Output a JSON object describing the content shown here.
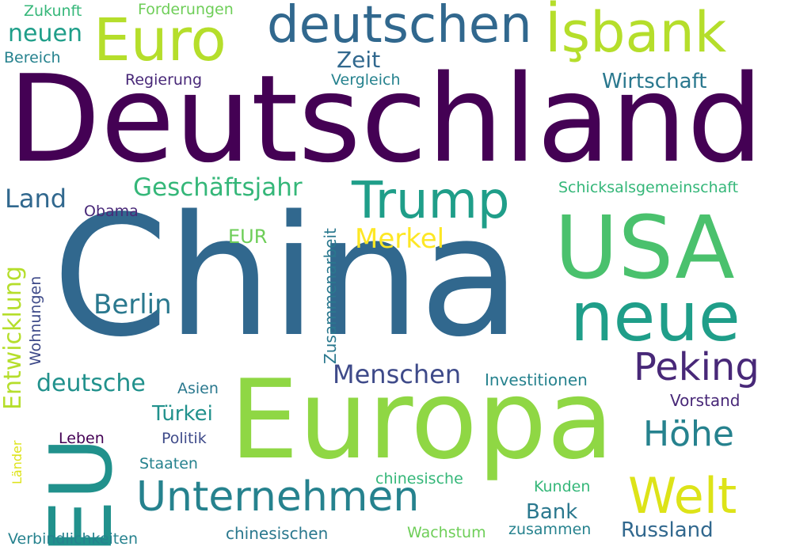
{
  "colors": {
    "c0": "#440154",
    "c1": "#482878",
    "c2": "#3e4a89",
    "c3": "#31688e",
    "c4": "#26828e",
    "c5": "#1f9e89",
    "c6": "#35b779",
    "c7": "#6ece58",
    "c8": "#b5de2b",
    "c9": "#fde725",
    "c10": "#4ac16d",
    "c11": "#8fd744",
    "c12": "#2a788e",
    "c13": "#21918c"
  },
  "words": [
    {
      "id": "deutschland",
      "text": "Deutschland",
      "color": "#440154"
    },
    {
      "id": "china",
      "text": "China",
      "color": "#31688e"
    },
    {
      "id": "europa",
      "text": "Europa",
      "color": "#8fd744"
    },
    {
      "id": "usa",
      "text": "USA",
      "color": "#4ac16d"
    },
    {
      "id": "eu",
      "text": "EU",
      "color": "#21918c"
    },
    {
      "id": "neue",
      "text": "neue",
      "color": "#1f9e89"
    },
    {
      "id": "deutschen",
      "text": "deutschen",
      "color": "#31688e"
    },
    {
      "id": "isbank",
      "text": "İşbank",
      "color": "#b5de2b"
    },
    {
      "id": "euro",
      "text": "Euro",
      "color": "#b5de2b"
    },
    {
      "id": "trump",
      "text": "Trump",
      "color": "#1f9e89"
    },
    {
      "id": "unternehmen",
      "text": "Unternehmen",
      "color": "#26828e"
    },
    {
      "id": "welt",
      "text": "Welt",
      "color": "#dde318"
    },
    {
      "id": "peking",
      "text": "Peking",
      "color": "#482878"
    },
    {
      "id": "hoehe",
      "text": "Höhe",
      "color": "#26828e"
    },
    {
      "id": "menschen",
      "text": "Menschen",
      "color": "#3e4a89"
    },
    {
      "id": "berlin",
      "text": "Berlin",
      "color": "#2a788e"
    },
    {
      "id": "geschaeftsjahr",
      "text": "Geschäftsjahr",
      "color": "#35b779"
    },
    {
      "id": "merkel",
      "text": "Merkel",
      "color": "#fde725"
    },
    {
      "id": "land",
      "text": "Land",
      "color": "#31688e"
    },
    {
      "id": "neuen",
      "text": "neuen",
      "color": "#1f9e89"
    },
    {
      "id": "deutsche",
      "text": "deutsche",
      "color": "#21918c"
    },
    {
      "id": "entwicklung",
      "text": "Entwicklung",
      "color": "#b5de2b"
    },
    {
      "id": "wirtschaft",
      "text": "Wirtschaft",
      "color": "#2a788e"
    },
    {
      "id": "zeit",
      "text": "Zeit",
      "color": "#31688e"
    },
    {
      "id": "schicksalsgemeinschaft",
      "text": "Schicksalsgemeinschaft",
      "color": "#35b779"
    },
    {
      "id": "russland",
      "text": "Russland",
      "color": "#31688e"
    },
    {
      "id": "bank",
      "text": "Bank",
      "color": "#2a788e"
    },
    {
      "id": "tuerkei",
      "text": "Türkei",
      "color": "#21918c"
    },
    {
      "id": "eur",
      "text": "EUR",
      "color": "#6ece58"
    },
    {
      "id": "zusammenarbeit",
      "text": "Zusammenarbeit",
      "color": "#2a788e"
    },
    {
      "id": "investitionen",
      "text": "Investitionen",
      "color": "#26828e"
    },
    {
      "id": "vorstand",
      "text": "Vorstand",
      "color": "#482878"
    },
    {
      "id": "obama",
      "text": "Obama",
      "color": "#482878"
    },
    {
      "id": "regierung",
      "text": "Regierung",
      "color": "#482878"
    },
    {
      "id": "vergleich",
      "text": "Vergleich",
      "color": "#26828e"
    },
    {
      "id": "zukunft",
      "text": "Zukunft",
      "color": "#35b779"
    },
    {
      "id": "forderungen",
      "text": "Forderungen",
      "color": "#6ece58"
    },
    {
      "id": "bereich",
      "text": "Bereich",
      "color": "#26828e"
    },
    {
      "id": "wohnungen",
      "text": "Wohnungen",
      "color": "#3e4a89"
    },
    {
      "id": "asien",
      "text": "Asien",
      "color": "#2a788e"
    },
    {
      "id": "politik",
      "text": "Politik",
      "color": "#3e4a89"
    },
    {
      "id": "leben",
      "text": "Leben",
      "color": "#440154"
    },
    {
      "id": "staaten",
      "text": "Staaten",
      "color": "#26828e"
    },
    {
      "id": "laender",
      "text": "Länder",
      "color": "#dde318"
    },
    {
      "id": "chinesische",
      "text": "chinesische",
      "color": "#35b779"
    },
    {
      "id": "chinesischen",
      "text": "chinesischen",
      "color": "#2a788e"
    },
    {
      "id": "kunden",
      "text": "Kunden",
      "color": "#35b779"
    },
    {
      "id": "wachstum",
      "text": "Wachstum",
      "color": "#6ece58"
    },
    {
      "id": "zusammen",
      "text": "zusammen",
      "color": "#26828e"
    },
    {
      "id": "verbindlichkeiten",
      "text": "Verbindlichkeiten",
      "color": "#26828e"
    }
  ]
}
